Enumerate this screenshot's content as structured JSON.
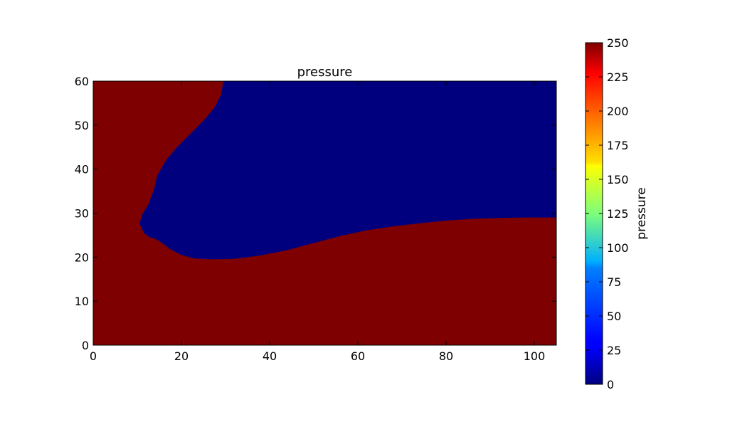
{
  "chart_data": {
    "type": "heatmap",
    "title": "pressure",
    "xlabel": "",
    "ylabel": "",
    "xlim": [
      0,
      105
    ],
    "ylim": [
      0,
      60
    ],
    "x_ticks": [
      0,
      20,
      40,
      60,
      80,
      100
    ],
    "y_ticks": [
      0,
      10,
      20,
      30,
      40,
      50,
      60
    ],
    "grid": false,
    "field": {
      "background_value": 250,
      "background_color": "#7f0000",
      "low_region": {
        "value": 0,
        "color": "#00007f",
        "boundary": [
          [
            29.5,
            60
          ],
          [
            29,
            57
          ],
          [
            27.5,
            54
          ],
          [
            25,
            51
          ],
          [
            22,
            48
          ],
          [
            19,
            45
          ],
          [
            16.5,
            42
          ],
          [
            14.5,
            38.5
          ],
          [
            13.8,
            35.5
          ],
          [
            12.5,
            32
          ],
          [
            11,
            29.5
          ],
          [
            10.5,
            27.6
          ],
          [
            11.5,
            25.5
          ],
          [
            12.8,
            24.5
          ],
          [
            14,
            24.2
          ],
          [
            15.5,
            23.3
          ],
          [
            17.5,
            21.8
          ],
          [
            20,
            20.5
          ],
          [
            23,
            19.7
          ],
          [
            27,
            19.5
          ],
          [
            32,
            19.6
          ],
          [
            38,
            20.4
          ],
          [
            44,
            21.6
          ],
          [
            50,
            23.2
          ],
          [
            56,
            24.8
          ],
          [
            62,
            26.1
          ],
          [
            68,
            27
          ],
          [
            74,
            27.7
          ],
          [
            80,
            28.3
          ],
          [
            86,
            28.7
          ],
          [
            92,
            28.9
          ],
          [
            98,
            29
          ],
          [
            105,
            29
          ],
          [
            105,
            60
          ]
        ]
      }
    },
    "colorbar": {
      "label": "pressure",
      "colormap": "jet",
      "range": [
        0,
        250
      ],
      "ticks": [
        0,
        25,
        50,
        75,
        100,
        125,
        150,
        175,
        200,
        225,
        250
      ]
    }
  }
}
